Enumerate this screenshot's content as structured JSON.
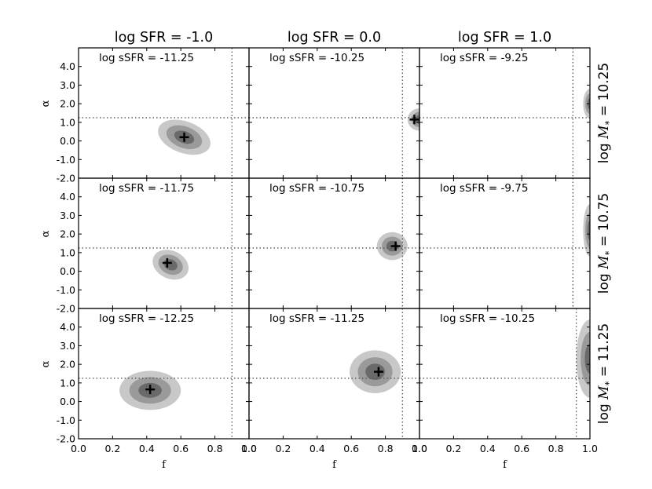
{
  "chart_data": {
    "type": "contour",
    "col_titles": [
      "log SFR = -1.0",
      "log SFR = 0.0",
      "log SFR = 1.0"
    ],
    "row_labels": [
      "log M_* = 10.25",
      "log M_* = 10.75",
      "log M_* = 11.25"
    ],
    "row_label_parts": {
      "prefix": "log ",
      "symbol": "M",
      "sub": "*",
      "values": [
        "10.25",
        "10.75",
        "11.25"
      ]
    },
    "xlabel": "f",
    "ylabel": "α",
    "xlim": [
      0.0,
      1.0
    ],
    "ylim": [
      -2.0,
      5.0
    ],
    "xticks": [
      "0.0",
      "0.2",
      "0.4",
      "0.6",
      "0.8",
      "1.0"
    ],
    "yticks": [
      "-2.0",
      "-1.0",
      "0.0",
      "1.0",
      "2.0",
      "3.0",
      "4.0"
    ],
    "yticks_values": [
      -2,
      -1,
      0,
      1,
      2,
      3,
      4
    ],
    "ref_vline_x": 0.9,
    "ref_hline_y": 1.25,
    "levels": [
      "outer",
      "middle",
      "inner"
    ],
    "level_colors": [
      "#c8c8c8",
      "#9a9a9a",
      "#6a6a6a"
    ],
    "panels": [
      [
        {
          "ssfr": "log sSFR = -11.25",
          "vline": 0.9,
          "peak": [
            0.62,
            0.2
          ],
          "blob": {
            "cx": 0.62,
            "cy": 0.2,
            "rx": 0.16,
            "ry": 0.85,
            "rot": 20
          }
        },
        {
          "ssfr": "log sSFR = -10.25",
          "vline": 0.9,
          "peak": [
            0.97,
            1.15
          ],
          "blob": {
            "cx": 1.0,
            "cy": 1.15,
            "rx": 0.07,
            "ry": 0.6,
            "rot": 0
          }
        },
        {
          "ssfr": "log sSFR = -9.25",
          "vline": 0.9,
          "peak": null,
          "blob": {
            "cx": 1.0,
            "cy": 2.0,
            "rx": 0.04,
            "ry": 0.8,
            "rot": 0
          }
        }
      ],
      [
        {
          "ssfr": "log sSFR = -11.75",
          "vline": 0.9,
          "peak": [
            0.52,
            0.45
          ],
          "blob": {
            "cx": 0.54,
            "cy": 0.35,
            "rx": 0.11,
            "ry": 0.75,
            "rot": 25
          }
        },
        {
          "ssfr": "log sSFR = -10.75",
          "vline": 0.9,
          "peak": [
            0.86,
            1.35
          ],
          "blob": {
            "cx": 0.84,
            "cy": 1.35,
            "rx": 0.09,
            "ry": 0.75,
            "rot": 0
          }
        },
        {
          "ssfr": "log sSFR = -9.75",
          "vline": 0.9,
          "peak": null,
          "blob": {
            "cx": 1.0,
            "cy": 2.2,
            "rx": 0.04,
            "ry": 1.4,
            "rot": 0
          }
        }
      ],
      [
        {
          "ssfr": "log sSFR = -12.25",
          "vline": 0.9,
          "peak": [
            0.42,
            0.65
          ],
          "blob": {
            "cx": 0.42,
            "cy": 0.6,
            "rx": 0.18,
            "ry": 1.05,
            "rot": 0
          }
        },
        {
          "ssfr": "log sSFR = -11.25",
          "vline": 0.9,
          "peak": [
            0.76,
            1.6
          ],
          "blob": {
            "cx": 0.74,
            "cy": 1.6,
            "rx": 0.15,
            "ry": 1.15,
            "rot": 0
          }
        },
        {
          "ssfr": "log sSFR = -10.25",
          "vline": 0.92,
          "peak": null,
          "blob": {
            "cx": 1.0,
            "cy": 2.3,
            "rx": 0.08,
            "ry": 2.1,
            "rot": 0
          }
        }
      ]
    ]
  }
}
